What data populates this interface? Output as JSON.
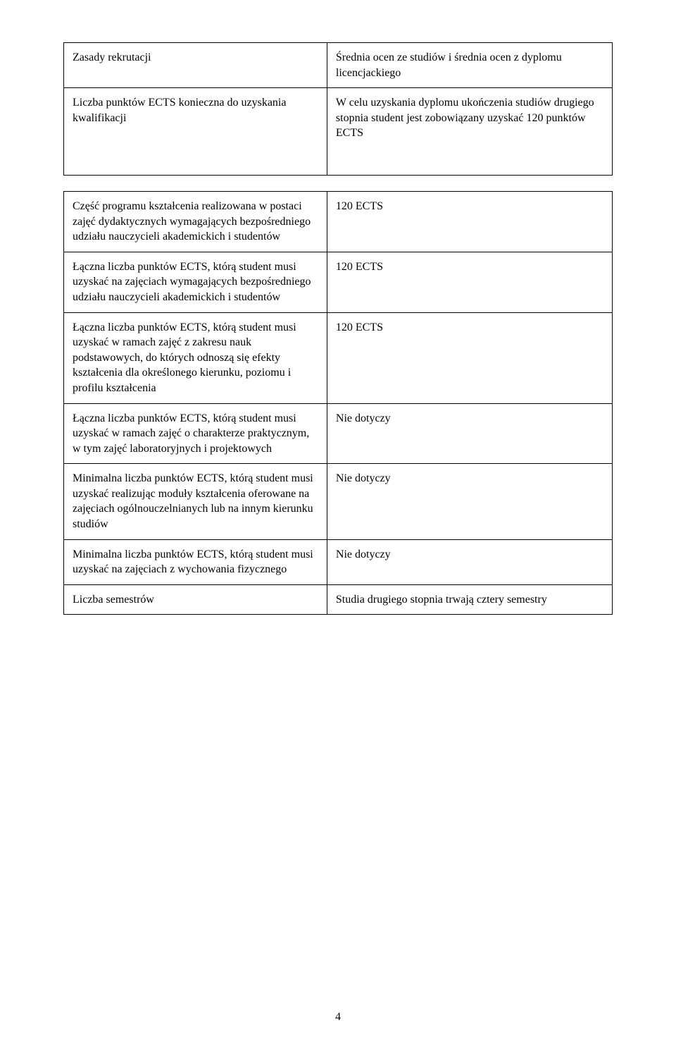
{
  "table1": {
    "rows": [
      {
        "left": "Zasady rekrutacji",
        "right": "Średnia ocen ze studiów i średnia ocen z dyplomu licencjackiego"
      },
      {
        "left": "Liczba punktów ECTS konieczna do uzyskania kwalifikacji",
        "right": "W celu uzyskania dyplomu ukończenia studiów drugiego stopnia student jest zobowiązany uzyskać 120 punktów ECTS"
      }
    ]
  },
  "table2": {
    "rows": [
      {
        "left": "Część programu kształcenia realizowana w postaci zajęć dydaktycznych wymagających bezpośredniego udziału nauczycieli akademickich i studentów",
        "right": "120 ECTS"
      },
      {
        "left": "Łączna liczba punktów ECTS, którą student musi uzyskać na zajęciach wymagających bezpośredniego udziału nauczycieli akademickich i studentów",
        "right": "120 ECTS"
      },
      {
        "left": "Łączna liczba punktów ECTS, którą student musi uzyskać w ramach zajęć z zakresu nauk podstawowych, do których odnoszą się efekty kształcenia dla określonego kierunku, poziomu i profilu kształcenia",
        "right": "120 ECTS"
      },
      {
        "left": "Łączna liczba punktów ECTS, którą student musi uzyskać w ramach zajęć o charakterze praktycznym, w tym zajęć laboratoryjnych i projektowych",
        "right": "Nie dotyczy"
      },
      {
        "left": "Minimalna liczba punktów ECTS, którą student musi uzyskać realizując moduły kształcenia oferowane na zajęciach ogólnouczelnianych lub na innym kierunku studiów",
        "right": "Nie dotyczy"
      },
      {
        "left": "Minimalna liczba punktów ECTS, którą student musi uzyskać na zajęciach z wychowania fizycznego",
        "right": "Nie dotyczy"
      },
      {
        "left": "Liczba semestrów",
        "right": "Studia drugiego stopnia trwają cztery semestry"
      }
    ]
  },
  "pageNumber": "4"
}
